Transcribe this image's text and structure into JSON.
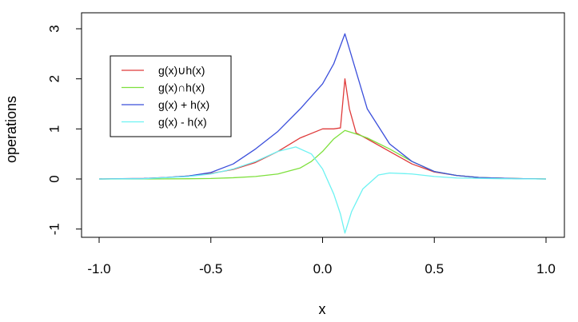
{
  "chart_data": {
    "type": "line",
    "xlabel": "x",
    "ylabel": "operations",
    "xlim": [
      -1.0,
      1.0
    ],
    "ylim": [
      -1.1,
      3.0
    ],
    "x_ticks": [
      -1.0,
      -0.5,
      0.0,
      0.5,
      1.0
    ],
    "x_tick_labels": [
      "-1.0",
      "-0.5",
      "0.0",
      "0.5",
      "1.0"
    ],
    "y_ticks": [
      -1,
      0,
      1,
      2,
      3
    ],
    "y_tick_labels": [
      "-1",
      "0",
      "1",
      "2",
      "3"
    ],
    "grid": false,
    "legend_position": "top-left",
    "series": [
      {
        "name": "g(x)∪h(x)",
        "color": "#df3b3b",
        "x": [
          -1.0,
          -0.9,
          -0.8,
          -0.7,
          -0.6,
          -0.5,
          -0.4,
          -0.3,
          -0.2,
          -0.1,
          0.0,
          0.05,
          0.08,
          0.1,
          0.12,
          0.15,
          0.2,
          0.3,
          0.4,
          0.5,
          0.6,
          0.7,
          0.8,
          0.9,
          1.0
        ],
        "y": [
          0.0,
          0.005,
          0.01,
          0.03,
          0.06,
          0.11,
          0.19,
          0.33,
          0.55,
          0.82,
          1.0,
          1.0,
          1.02,
          2.0,
          1.4,
          0.92,
          0.8,
          0.55,
          0.3,
          0.14,
          0.07,
          0.03,
          0.015,
          0.005,
          0.0
        ]
      },
      {
        "name": "g(x)∩h(x)",
        "color": "#7ee03d",
        "x": [
          -1.0,
          -0.9,
          -0.8,
          -0.7,
          -0.6,
          -0.5,
          -0.4,
          -0.3,
          -0.2,
          -0.1,
          -0.05,
          0.0,
          0.05,
          0.1,
          0.15,
          0.2,
          0.3,
          0.4,
          0.5,
          0.6,
          0.7,
          0.8,
          0.9,
          1.0
        ],
        "y": [
          0.0,
          0.0,
          0.0,
          0.002,
          0.005,
          0.01,
          0.025,
          0.05,
          0.1,
          0.22,
          0.35,
          0.55,
          0.8,
          0.97,
          0.9,
          0.82,
          0.6,
          0.35,
          0.15,
          0.07,
          0.03,
          0.015,
          0.005,
          0.0
        ]
      },
      {
        "name": "g(x) + h(x)",
        "color": "#3b4fdb",
        "x": [
          -1.0,
          -0.9,
          -0.8,
          -0.7,
          -0.6,
          -0.5,
          -0.4,
          -0.3,
          -0.2,
          -0.1,
          0.0,
          0.05,
          0.1,
          0.15,
          0.2,
          0.3,
          0.4,
          0.5,
          0.6,
          0.7,
          0.8,
          0.9,
          1.0
        ],
        "y": [
          0.0,
          0.005,
          0.01,
          0.03,
          0.06,
          0.13,
          0.3,
          0.6,
          0.95,
          1.4,
          1.9,
          2.3,
          2.9,
          2.15,
          1.4,
          0.7,
          0.35,
          0.15,
          0.07,
          0.03,
          0.015,
          0.005,
          0.0
        ]
      },
      {
        "name": "g(x) - h(x)",
        "color": "#6df2f2",
        "x": [
          -1.0,
          -0.8,
          -0.6,
          -0.5,
          -0.4,
          -0.3,
          -0.2,
          -0.12,
          -0.05,
          0.0,
          0.05,
          0.08,
          0.1,
          0.13,
          0.18,
          0.25,
          0.3,
          0.4,
          0.5,
          0.6,
          0.8,
          1.0
        ],
        "y": [
          0.0,
          0.005,
          0.05,
          0.1,
          0.2,
          0.35,
          0.55,
          0.64,
          0.5,
          0.2,
          -0.3,
          -0.7,
          -1.08,
          -0.65,
          -0.2,
          0.08,
          0.12,
          0.1,
          0.05,
          0.02,
          0.005,
          0.0
        ]
      }
    ]
  }
}
